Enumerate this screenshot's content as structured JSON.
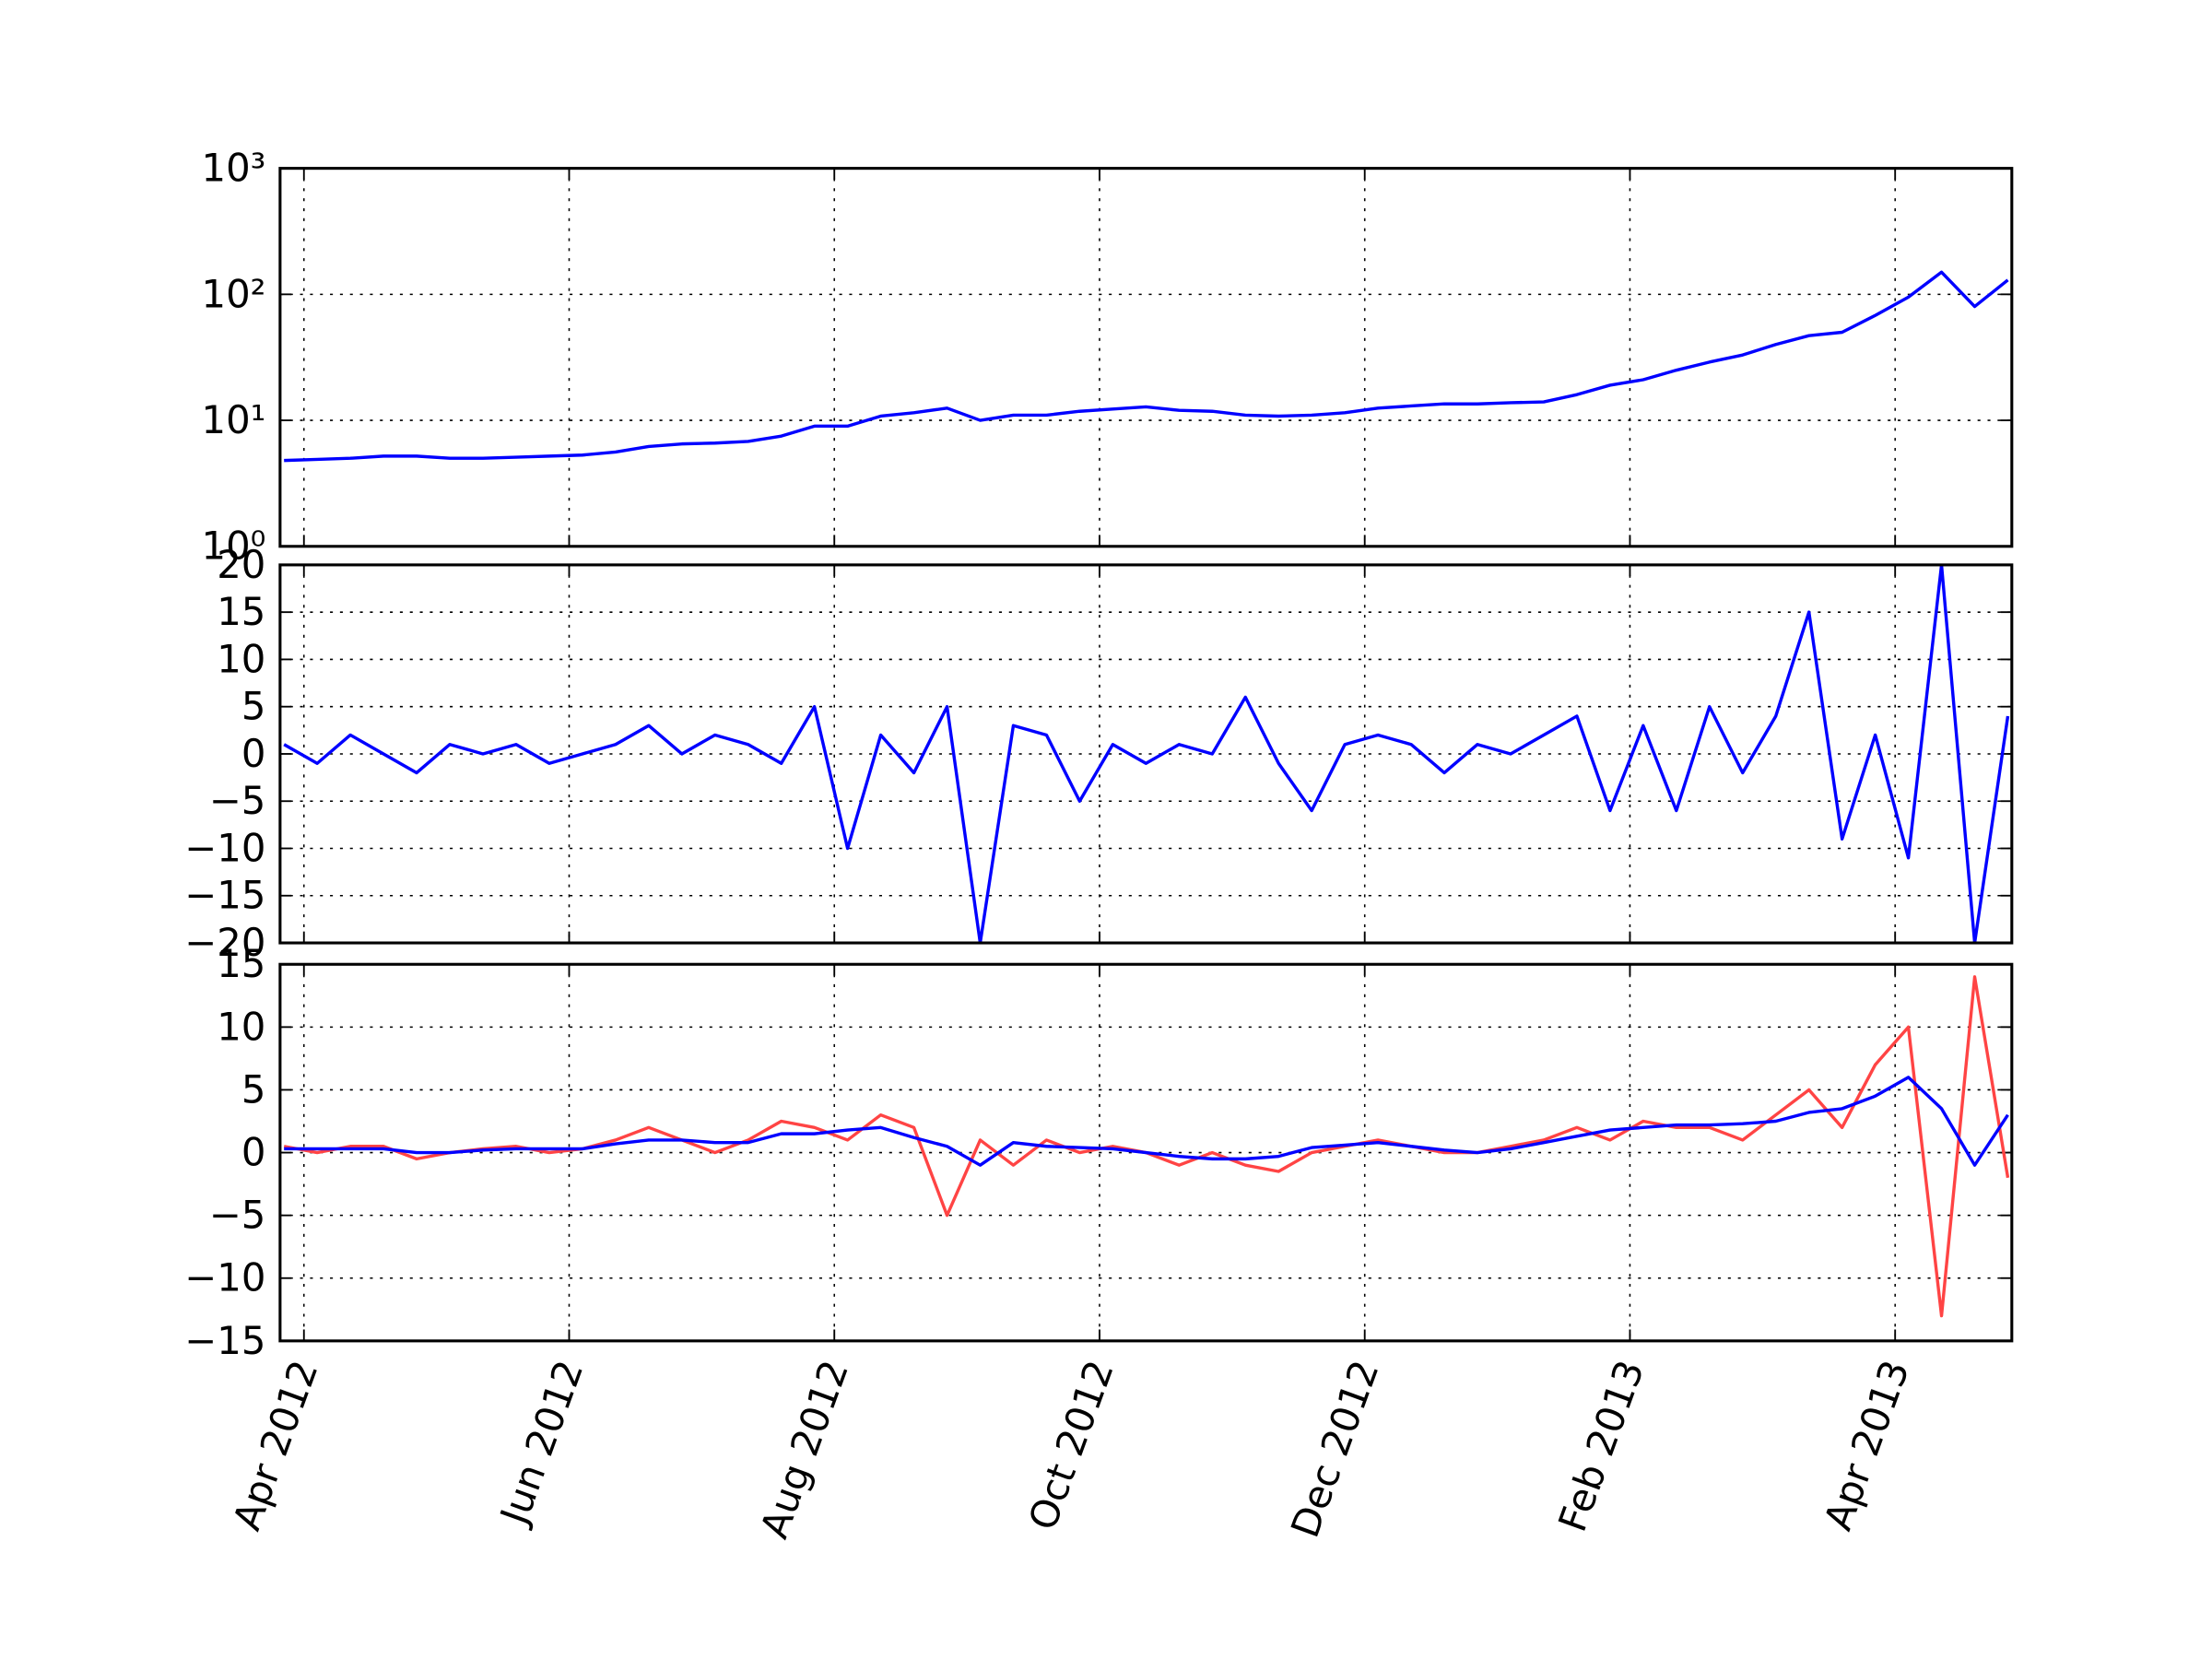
{
  "chart_data": [
    {
      "type": "line",
      "yscale": "log",
      "grid": true,
      "x": [
        3.85,
        4.1,
        4.35,
        4.6,
        4.85,
        5.1,
        5.35,
        5.6,
        5.85,
        6.1,
        6.35,
        6.6,
        6.85,
        7.1,
        7.35,
        7.6,
        7.85,
        8.1,
        8.35,
        8.6,
        8.85,
        9.1,
        9.35,
        9.6,
        9.85,
        10.1,
        10.35,
        10.6,
        10.85,
        11.1,
        11.35,
        11.6,
        11.85,
        12.1,
        12.35,
        12.6,
        12.85,
        13.1,
        13.35,
        13.6,
        13.85,
        14.1,
        14.35,
        14.6,
        14.85,
        15.1,
        15.35,
        15.6,
        15.85,
        16.1,
        16.35,
        16.6,
        16.85
      ],
      "series": [
        {
          "color": "#0000ff",
          "values": [
            4.8,
            4.9,
            5.0,
            5.2,
            5.2,
            5.0,
            5.0,
            5.1,
            5.2,
            5.3,
            5.6,
            6.2,
            6.5,
            6.6,
            6.8,
            7.5,
            9.0,
            9.0,
            10.8,
            11.5,
            12.5,
            10.0,
            11.0,
            11.0,
            11.8,
            12.3,
            12.8,
            12.0,
            11.8,
            11.0,
            10.8,
            11.0,
            11.5,
            12.5,
            13.0,
            13.5,
            13.5,
            13.8,
            14.0,
            16.0,
            19.0,
            21.0,
            25.0,
            29.0,
            33.0,
            40.0,
            47.0,
            50.0,
            68.0,
            95.0,
            150.0,
            80.0,
            130.0
          ]
        }
      ],
      "xlim": [
        3.82,
        16.88
      ],
      "xticks": [
        4,
        6,
        8,
        10,
        12,
        14,
        16
      ],
      "ylim": [
        1,
        1000
      ],
      "yticks": [
        {
          "value": 1,
          "label": "10⁰"
        },
        {
          "value": 10,
          "label": "10¹"
        },
        {
          "value": 100,
          "label": "10²"
        },
        {
          "value": 1000,
          "label": "10³"
        }
      ]
    },
    {
      "type": "line",
      "grid": true,
      "x": [
        3.85,
        4.1,
        4.35,
        4.6,
        4.85,
        5.1,
        5.35,
        5.6,
        5.85,
        6.1,
        6.35,
        6.6,
        6.85,
        7.1,
        7.35,
        7.6,
        7.85,
        8.1,
        8.35,
        8.6,
        8.85,
        9.1,
        9.35,
        9.6,
        9.85,
        10.1,
        10.35,
        10.6,
        10.85,
        11.1,
        11.35,
        11.6,
        11.85,
        12.1,
        12.35,
        12.6,
        12.85,
        13.1,
        13.35,
        13.6,
        13.85,
        14.1,
        14.35,
        14.6,
        14.85,
        15.1,
        15.35,
        15.6,
        15.85,
        16.1,
        16.35,
        16.6,
        16.85
      ],
      "series": [
        {
          "color": "#0000ff",
          "values": [
            1,
            -1,
            2,
            0,
            -2,
            1,
            0,
            1,
            -1,
            0,
            1,
            3,
            0,
            2,
            1,
            -1,
            5,
            -10,
            2,
            -2,
            5,
            -20,
            3,
            2,
            -5,
            1,
            -1,
            1,
            0,
            6,
            -1,
            -6,
            1,
            2,
            1,
            -2,
            1,
            0,
            2,
            4,
            -6,
            3,
            -6,
            5,
            -2,
            4,
            15,
            -9,
            2,
            -11,
            20,
            -20,
            4
          ]
        }
      ],
      "xlim": [
        3.82,
        16.88
      ],
      "xticks": [
        4,
        6,
        8,
        10,
        12,
        14,
        16
      ],
      "ylim": [
        -20,
        20
      ],
      "yticks": [
        {
          "value": -20,
          "label": "−20"
        },
        {
          "value": -15,
          "label": "−15"
        },
        {
          "value": -10,
          "label": "−10"
        },
        {
          "value": -5,
          "label": "−5"
        },
        0,
        5,
        10,
        15,
        20
      ]
    },
    {
      "type": "line",
      "grid": true,
      "x": [
        3.85,
        4.1,
        4.35,
        4.6,
        4.85,
        5.1,
        5.35,
        5.6,
        5.85,
        6.1,
        6.35,
        6.6,
        6.85,
        7.1,
        7.35,
        7.6,
        7.85,
        8.1,
        8.35,
        8.6,
        8.85,
        9.1,
        9.35,
        9.6,
        9.85,
        10.1,
        10.35,
        10.6,
        10.85,
        11.1,
        11.35,
        11.6,
        11.85,
        12.1,
        12.35,
        12.6,
        12.85,
        13.1,
        13.35,
        13.6,
        13.85,
        14.1,
        14.35,
        14.6,
        14.85,
        15.1,
        15.35,
        15.6,
        15.85,
        16.1,
        16.35,
        16.6,
        16.85
      ],
      "series": [
        {
          "color": "#ff4444",
          "values": [
            0.5,
            0,
            0.5,
            0.5,
            -0.5,
            0,
            0.3,
            0.5,
            0,
            0.3,
            1,
            2,
            1,
            0,
            1,
            2.5,
            2,
            1,
            3,
            2,
            -5,
            1,
            -1,
            1,
            0,
            0.5,
            0,
            -1,
            0,
            -1,
            -1.5,
            0,
            0.5,
            1,
            0.5,
            0,
            0,
            0.5,
            1,
            2,
            1,
            2.5,
            2,
            2,
            1,
            3,
            5,
            2,
            7,
            10,
            -13,
            14,
            -2
          ]
        },
        {
          "color": "#0000ff",
          "values": [
            0.3,
            0.3,
            0.3,
            0.3,
            0,
            0,
            0.2,
            0.3,
            0.3,
            0.3,
            0.7,
            1,
            1,
            0.8,
            0.8,
            1.5,
            1.5,
            1.8,
            2,
            1.2,
            0.5,
            -1,
            0.8,
            0.5,
            0.4,
            0.3,
            0,
            -0.3,
            -0.5,
            -0.5,
            -0.3,
            0.4,
            0.6,
            0.8,
            0.5,
            0.2,
            0,
            0.3,
            0.8,
            1.3,
            1.8,
            2,
            2.2,
            2.2,
            2.3,
            2.5,
            3.2,
            3.5,
            4.5,
            6,
            3.5,
            -1,
            3
          ]
        }
      ],
      "xlim": [
        3.82,
        16.88
      ],
      "xticks": [
        {
          "value": 4,
          "label": "Apr 2012"
        },
        {
          "value": 6,
          "label": "Jun 2012"
        },
        {
          "value": 8,
          "label": "Aug 2012"
        },
        {
          "value": 10,
          "label": "Oct 2012"
        },
        {
          "value": 12,
          "label": "Dec 2012"
        },
        {
          "value": 14,
          "label": "Feb 2013"
        },
        {
          "value": 16,
          "label": "Apr 2013"
        }
      ],
      "ylim": [
        -15,
        15
      ],
      "yticks": [
        {
          "value": -15,
          "label": "−15"
        },
        {
          "value": -10,
          "label": "−10"
        },
        {
          "value": -5,
          "label": "−5"
        },
        0,
        5,
        10,
        15
      ]
    }
  ]
}
